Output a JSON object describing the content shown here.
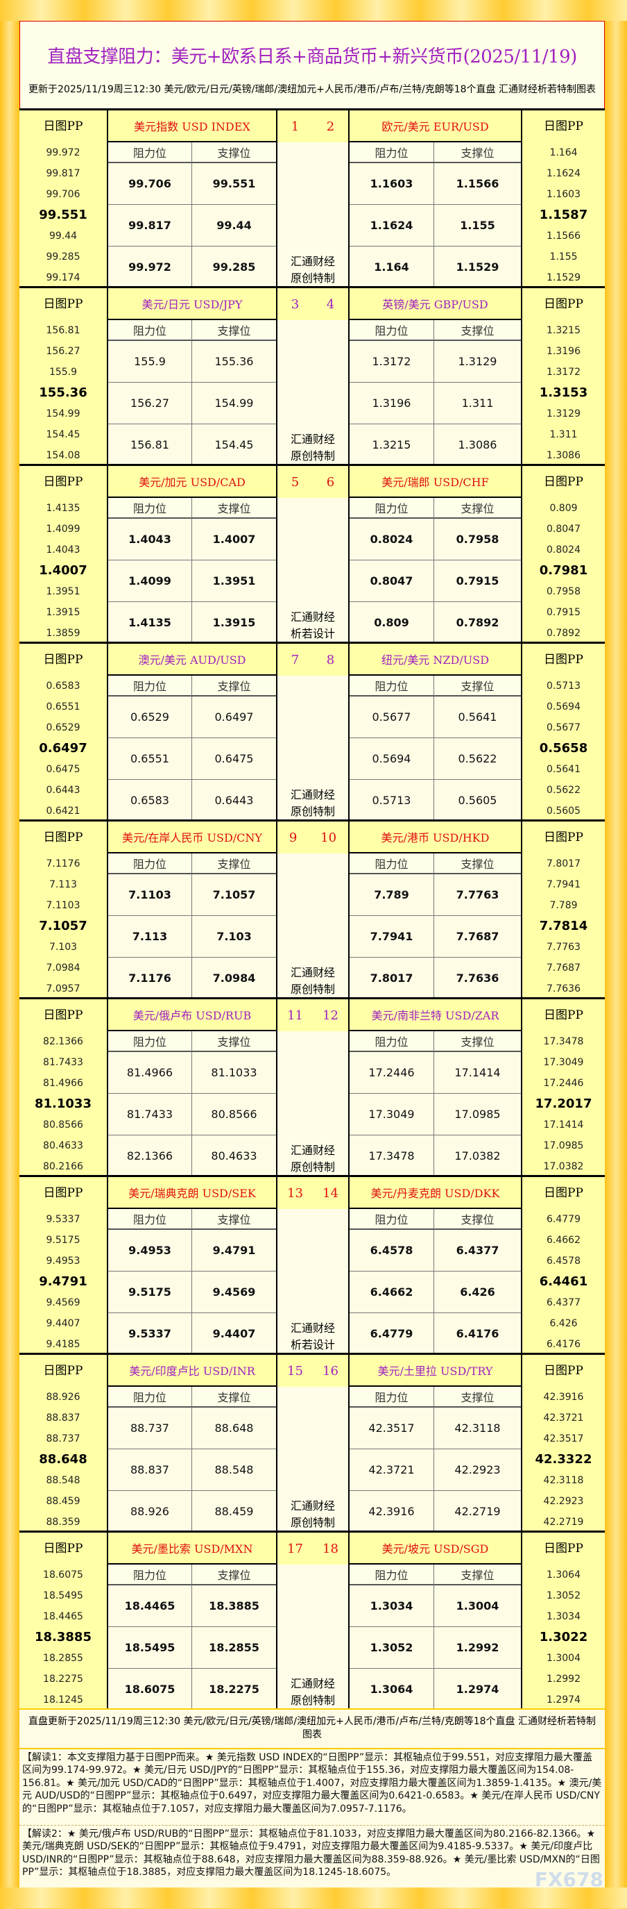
{
  "title": "直盘支撑阻力：美元+欧系日系+商品货币+新兴货币(2025/11/19)",
  "subtitle": "更新于2025/11/19周三12:30 美元/欧元/日元/英镑/瑞郎/澳纽加元+人民币/港币/卢布/兰特/克朗等18个直盘 汇通财经析若特制图表",
  "labels": {
    "pp": "日图PP",
    "resistance": "阻力位",
    "support": "支撑位",
    "wm1": "汇通财经"
  },
  "colors": {
    "red": "#e01010",
    "purple": "#a020c0",
    "watermark": "#f7cc55",
    "pp_bg": "#ffffa8"
  },
  "blocks": [
    {
      "color": "red",
      "bold": true,
      "wm2": "原创特制",
      "left": {
        "name": "美元指数 USD INDEX",
        "num": "1",
        "pp": [
          "99.972",
          "99.817",
          "99.706",
          "99.551",
          "99.44",
          "99.285",
          "99.174"
        ],
        "res": [
          "99.706",
          "99.817",
          "99.972"
        ],
        "sup": [
          "99.551",
          "99.44",
          "99.285"
        ]
      },
      "right": {
        "name": "欧元/美元 EUR/USD",
        "num": "2",
        "pp": [
          "1.164",
          "1.1624",
          "1.1603",
          "1.1587",
          "1.1566",
          "1.155",
          "1.1529"
        ],
        "res": [
          "1.1603",
          "1.1624",
          "1.164"
        ],
        "sup": [
          "1.1566",
          "1.155",
          "1.1529"
        ]
      }
    },
    {
      "color": "pur",
      "bold": false,
      "wm2": "原创特制",
      "left": {
        "name": "美元/日元 USD/JPY",
        "num": "3",
        "pp": [
          "156.81",
          "156.27",
          "155.9",
          "155.36",
          "154.99",
          "154.45",
          "154.08"
        ],
        "res": [
          "155.9",
          "156.27",
          "156.81"
        ],
        "sup": [
          "155.36",
          "154.99",
          "154.45"
        ]
      },
      "right": {
        "name": "英镑/美元 GBP/USD",
        "num": "4",
        "pp": [
          "1.3215",
          "1.3196",
          "1.3172",
          "1.3153",
          "1.3129",
          "1.311",
          "1.3086"
        ],
        "res": [
          "1.3172",
          "1.3196",
          "1.3215"
        ],
        "sup": [
          "1.3129",
          "1.311",
          "1.3086"
        ]
      }
    },
    {
      "color": "red",
      "bold": true,
      "wm2": "析若设计",
      "left": {
        "name": "美元/加元 USD/CAD",
        "num": "5",
        "pp": [
          "1.4135",
          "1.4099",
          "1.4043",
          "1.4007",
          "1.3951",
          "1.3915",
          "1.3859"
        ],
        "res": [
          "1.4043",
          "1.4099",
          "1.4135"
        ],
        "sup": [
          "1.4007",
          "1.3951",
          "1.3915"
        ]
      },
      "right": {
        "name": "美元/瑞郎 USD/CHF",
        "num": "6",
        "pp": [
          "0.809",
          "0.8047",
          "0.8024",
          "0.7981",
          "0.7958",
          "0.7915",
          "0.7892"
        ],
        "res": [
          "0.8024",
          "0.8047",
          "0.809"
        ],
        "sup": [
          "0.7958",
          "0.7915",
          "0.7892"
        ]
      }
    },
    {
      "color": "pur",
      "bold": false,
      "wm2": "原创特制",
      "left": {
        "name": "澳元/美元 AUD/USD",
        "num": "7",
        "pp": [
          "0.6583",
          "0.6551",
          "0.6529",
          "0.6497",
          "0.6475",
          "0.6443",
          "0.6421"
        ],
        "res": [
          "0.6529",
          "0.6551",
          "0.6583"
        ],
        "sup": [
          "0.6497",
          "0.6475",
          "0.6443"
        ]
      },
      "right": {
        "name": "纽元/美元 NZD/USD",
        "num": "8",
        "pp": [
          "0.5713",
          "0.5694",
          "0.5677",
          "0.5658",
          "0.5641",
          "0.5622",
          "0.5605"
        ],
        "res": [
          "0.5677",
          "0.5694",
          "0.5713"
        ],
        "sup": [
          "0.5641",
          "0.5622",
          "0.5605"
        ]
      }
    },
    {
      "color": "red",
      "bold": true,
      "wm2": "原创特制",
      "left": {
        "name": "美元/在岸人民币 USD/CNY",
        "num": "9",
        "pp": [
          "7.1176",
          "7.113",
          "7.1103",
          "7.1057",
          "7.103",
          "7.0984",
          "7.0957"
        ],
        "res": [
          "7.1103",
          "7.113",
          "7.1176"
        ],
        "sup": [
          "7.1057",
          "7.103",
          "7.0984"
        ]
      },
      "right": {
        "name": "美元/港币 USD/HKD",
        "num": "10",
        "pp": [
          "7.8017",
          "7.7941",
          "7.789",
          "7.7814",
          "7.7763",
          "7.7687",
          "7.7636"
        ],
        "res": [
          "7.789",
          "7.7941",
          "7.8017"
        ],
        "sup": [
          "7.7763",
          "7.7687",
          "7.7636"
        ]
      }
    },
    {
      "color": "pur",
      "bold": false,
      "wm2": "原创特制",
      "left": {
        "name": "美元/俄卢布 USD/RUB",
        "num": "11",
        "pp": [
          "82.1366",
          "81.7433",
          "81.4966",
          "81.1033",
          "80.8566",
          "80.4633",
          "80.2166"
        ],
        "res": [
          "81.4966",
          "81.7433",
          "82.1366"
        ],
        "sup": [
          "81.1033",
          "80.8566",
          "80.4633"
        ]
      },
      "right": {
        "name": "美元/南非兰特 USD/ZAR",
        "num": "12",
        "pp": [
          "17.3478",
          "17.3049",
          "17.2446",
          "17.2017",
          "17.1414",
          "17.0985",
          "17.0382"
        ],
        "res": [
          "17.2446",
          "17.3049",
          "17.3478"
        ],
        "sup": [
          "17.1414",
          "17.0985",
          "17.0382"
        ]
      }
    },
    {
      "color": "red",
      "bold": true,
      "wm2": "析若设计",
      "left": {
        "name": "美元/瑞典克朗 USD/SEK",
        "num": "13",
        "pp": [
          "9.5337",
          "9.5175",
          "9.4953",
          "9.4791",
          "9.4569",
          "9.4407",
          "9.4185"
        ],
        "res": [
          "9.4953",
          "9.5175",
          "9.5337"
        ],
        "sup": [
          "9.4791",
          "9.4569",
          "9.4407"
        ]
      },
      "right": {
        "name": "美元/丹麦克朗 USD/DKK",
        "num": "14",
        "pp": [
          "6.4779",
          "6.4662",
          "6.4578",
          "6.4461",
          "6.4377",
          "6.426",
          "6.4176"
        ],
        "res": [
          "6.4578",
          "6.4662",
          "6.4779"
        ],
        "sup": [
          "6.4377",
          "6.426",
          "6.4176"
        ]
      }
    },
    {
      "color": "pur",
      "bold": false,
      "wm2": "原创特制",
      "left": {
        "name": "美元/印度卢比 USD/INR",
        "num": "15",
        "pp": [
          "88.926",
          "88.837",
          "88.737",
          "88.648",
          "88.548",
          "88.459",
          "88.359"
        ],
        "res": [
          "88.737",
          "88.837",
          "88.926"
        ],
        "sup": [
          "88.648",
          "88.548",
          "88.459"
        ]
      },
      "right": {
        "name": "美元/土里拉 USD/TRY",
        "num": "16",
        "pp": [
          "42.3916",
          "42.3721",
          "42.3517",
          "42.3322",
          "42.3118",
          "42.2923",
          "42.2719"
        ],
        "res": [
          "42.3517",
          "42.3721",
          "42.3916"
        ],
        "sup": [
          "42.3118",
          "42.2923",
          "42.2719"
        ]
      }
    },
    {
      "color": "red",
      "bold": true,
      "wm2": "原创特制",
      "left": {
        "name": "美元/墨比索 USD/MXN",
        "num": "17",
        "pp": [
          "18.6075",
          "18.5495",
          "18.4465",
          "18.3885",
          "18.2855",
          "18.2275",
          "18.1245"
        ],
        "res": [
          "18.4465",
          "18.5495",
          "18.6075"
        ],
        "sup": [
          "18.3885",
          "18.2855",
          "18.2275"
        ]
      },
      "right": {
        "name": "美元/坡元 USD/SGD",
        "num": "18",
        "pp": [
          "1.3064",
          "1.3052",
          "1.3034",
          "1.3022",
          "1.3004",
          "1.2992",
          "1.2974"
        ],
        "res": [
          "1.3034",
          "1.3052",
          "1.3064"
        ],
        "sup": [
          "1.3004",
          "1.2992",
          "1.2974"
        ]
      }
    }
  ],
  "footer": "直盘更新于2025/11/19周三12:30 美元/欧元/日元/英镑/瑞郎/澳纽加元+人民币/港币/卢布/兰特/克朗等18个直盘 汇通财经析若特制图表",
  "note1": "【解读1：本文支撑阻力基于日图PP而来。★ 美元指数 USD INDEX的“日图PP”显示：其枢轴点位于99.551，对应支撑阻力最大覆盖区间为99.174-99.972。★ 美元/日元 USD/JPY的“日图PP”显示：其枢轴点位于155.36，对应支撑阻力最大覆盖区间为154.08-156.81。★ 美元/加元 USD/CAD的“日图PP”显示：其枢轴点位于1.4007，对应支撑阻力最大覆盖区间为1.3859-1.4135。★ 澳元/美元 AUD/USD的“日图PP”显示：其枢轴点位于0.6497，对应支撑阻力最大覆盖区间为0.6421-0.6583。★ 美元/在岸人民币 USD/CNY的“日图PP”显示：其枢轴点位于7.1057，对应支撑阻力最大覆盖区间为7.0957-7.1176。",
  "note2": "【解读2：★ 美元/俄卢布 USD/RUB的“日图PP”显示：其枢轴点位于81.1033，对应支撑阻力最大覆盖区间为80.2166-82.1366。★ 美元/瑞典克朗 USD/SEK的“日图PP”显示：其枢轴点位于9.4791，对应支撑阻力最大覆盖区间为9.4185-9.5337。★ 美元/印度卢比 USD/INR的“日图PP”显示：其枢轴点位于88.648，对应支撑阻力最大覆盖区间为88.359-88.926。★ 美元/墨比索 USD/MXN的“日图PP”显示：其枢轴点位于18.3885，对应支撑阻力最大覆盖区间为18.1245-18.6075。",
  "watermark_logo": "FX678"
}
